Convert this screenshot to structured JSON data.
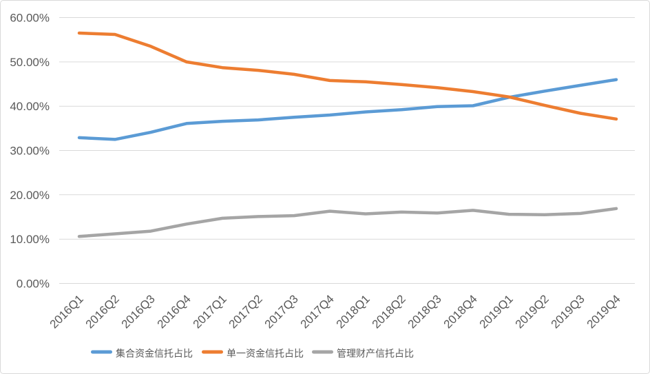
{
  "chart_data": {
    "type": "line",
    "title": "",
    "categories": [
      "2016Q1",
      "2016Q2",
      "2016Q3",
      "2016Q4",
      "2017Q1",
      "2017Q2",
      "2017Q3",
      "2017Q4",
      "2018Q1",
      "2018Q2",
      "2018Q3",
      "2018Q4",
      "2019Q1",
      "2019Q2",
      "2019Q3",
      "2019Q4"
    ],
    "series": [
      {
        "name": "集合资金信托占比",
        "color": "#5B9BD5",
        "values": [
          32.9,
          32.5,
          34.1,
          36.1,
          36.6,
          36.9,
          37.5,
          38.0,
          38.7,
          39.2,
          39.9,
          40.1,
          42.0,
          43.4,
          44.7,
          46.0
        ]
      },
      {
        "name": "单一资金信托占比",
        "color": "#ED7D31",
        "values": [
          56.5,
          56.2,
          53.5,
          50.0,
          48.7,
          48.1,
          47.2,
          45.8,
          45.5,
          44.9,
          44.2,
          43.3,
          42.1,
          40.2,
          38.4,
          37.1
        ]
      },
      {
        "name": "管理财产信托占比",
        "color": "#A5A5A5",
        "values": [
          10.6,
          11.2,
          11.8,
          13.4,
          14.7,
          15.1,
          15.3,
          16.3,
          15.7,
          16.1,
          15.9,
          16.5,
          15.6,
          15.5,
          15.8,
          16.9
        ]
      }
    ],
    "y_axis": {
      "min": 0,
      "max": 60,
      "step": 10,
      "tick_labels": [
        "0.00%",
        "10.00%",
        "20.00%",
        "30.00%",
        "40.00%",
        "50.00%",
        "60.00%"
      ]
    },
    "x_axis": {
      "label_rotation_deg": 45
    },
    "grid": true,
    "legend_position": "bottom"
  },
  "colors": {
    "background": "#FFFFFF",
    "gridline": "#D9D9D9",
    "border": "#D9D9D9",
    "axis_text": "#595959",
    "legend_text": "#595959"
  }
}
